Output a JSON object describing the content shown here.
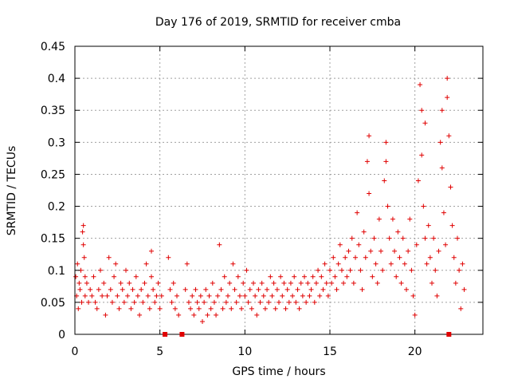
{
  "chart_data": {
    "type": "scatter",
    "title": "Day 176 of 2019, SRMTID for receiver cmba",
    "xlabel": "GPS time / hours",
    "ylabel": "SRMTID / TECUs",
    "xlim": [
      0,
      24
    ],
    "ylim": [
      0,
      0.45
    ],
    "x_ticks": [
      0,
      5,
      10,
      15,
      20
    ],
    "x_tick_labels": [
      "0",
      "5",
      "10",
      "15",
      "20"
    ],
    "y_ticks": [
      0,
      0.05,
      0.1,
      0.15,
      0.2,
      0.25,
      0.3,
      0.35,
      0.4,
      0.45
    ],
    "y_tick_labels": [
      "0",
      "0.05",
      "0.1",
      "0.15",
      "0.2",
      "0.25",
      "0.3",
      "0.35",
      "0.4",
      "0.45"
    ],
    "grid": true,
    "marker": "+",
    "color": "#e00000",
    "data_gap_markers_x": [
      5.3,
      6.3,
      22.0
    ],
    "series": [
      {
        "name": "SRMTID",
        "points": [
          [
            0.05,
            0.09
          ],
          [
            0.1,
            0.06
          ],
          [
            0.15,
            0.11
          ],
          [
            0.2,
            0.04
          ],
          [
            0.25,
            0.08
          ],
          [
            0.3,
            0.07
          ],
          [
            0.35,
            0.1
          ],
          [
            0.4,
            0.05
          ],
          [
            0.45,
            0.16
          ],
          [
            0.5,
            0.17
          ],
          [
            0.5,
            0.14
          ],
          [
            0.55,
            0.12
          ],
          [
            0.6,
            0.09
          ],
          [
            0.6,
            0.06
          ],
          [
            0.7,
            0.08
          ],
          [
            0.8,
            0.05
          ],
          [
            0.9,
            0.07
          ],
          [
            1.0,
            0.06
          ],
          [
            1.1,
            0.09
          ],
          [
            1.2,
            0.05
          ],
          [
            1.3,
            0.04
          ],
          [
            1.4,
            0.07
          ],
          [
            1.5,
            0.1
          ],
          [
            1.6,
            0.06
          ],
          [
            1.7,
            0.08
          ],
          [
            1.8,
            0.03
          ],
          [
            1.9,
            0.06
          ],
          [
            2.0,
            0.12
          ],
          [
            2.1,
            0.07
          ],
          [
            2.2,
            0.05
          ],
          [
            2.3,
            0.09
          ],
          [
            2.4,
            0.11
          ],
          [
            2.5,
            0.06
          ],
          [
            2.6,
            0.04
          ],
          [
            2.7,
            0.08
          ],
          [
            2.8,
            0.07
          ],
          [
            2.9,
            0.05
          ],
          [
            3.0,
            0.1
          ],
          [
            3.1,
            0.06
          ],
          [
            3.2,
            0.08
          ],
          [
            3.3,
            0.04
          ],
          [
            3.4,
            0.07
          ],
          [
            3.5,
            0.05
          ],
          [
            3.6,
            0.09
          ],
          [
            3.7,
            0.06
          ],
          [
            3.8,
            0.03
          ],
          [
            3.9,
            0.07
          ],
          [
            4.0,
            0.05
          ],
          [
            4.1,
            0.08
          ],
          [
            4.2,
            0.11
          ],
          [
            4.3,
            0.06
          ],
          [
            4.4,
            0.04
          ],
          [
            4.5,
            0.13
          ],
          [
            4.5,
            0.09
          ],
          [
            4.6,
            0.07
          ],
          [
            4.7,
            0.05
          ],
          [
            4.8,
            0.06
          ],
          [
            4.9,
            0.08
          ],
          [
            5.0,
            0.04
          ],
          [
            5.1,
            0.06
          ],
          [
            5.5,
            0.12
          ],
          [
            5.6,
            0.07
          ],
          [
            5.7,
            0.05
          ],
          [
            5.8,
            0.08
          ],
          [
            5.9,
            0.04
          ],
          [
            6.0,
            0.06
          ],
          [
            6.1,
            0.03
          ],
          [
            6.5,
            0.07
          ],
          [
            6.6,
            0.11
          ],
          [
            6.7,
            0.05
          ],
          [
            6.8,
            0.04
          ],
          [
            6.9,
            0.06
          ],
          [
            7.0,
            0.03
          ],
          [
            7.1,
            0.07
          ],
          [
            7.2,
            0.05
          ],
          [
            7.3,
            0.04
          ],
          [
            7.4,
            0.06
          ],
          [
            7.5,
            0.02
          ],
          [
            7.6,
            0.05
          ],
          [
            7.7,
            0.07
          ],
          [
            7.8,
            0.03
          ],
          [
            7.9,
            0.06
          ],
          [
            8.0,
            0.04
          ],
          [
            8.1,
            0.08
          ],
          [
            8.2,
            0.05
          ],
          [
            8.3,
            0.03
          ],
          [
            8.4,
            0.06
          ],
          [
            8.5,
            0.14
          ],
          [
            8.6,
            0.07
          ],
          [
            8.7,
            0.04
          ],
          [
            8.8,
            0.09
          ],
          [
            8.9,
            0.05
          ],
          [
            9.0,
            0.06
          ],
          [
            9.1,
            0.08
          ],
          [
            9.2,
            0.04
          ],
          [
            9.3,
            0.11
          ],
          [
            9.4,
            0.07
          ],
          [
            9.5,
            0.05
          ],
          [
            9.6,
            0.09
          ],
          [
            9.7,
            0.06
          ],
          [
            9.8,
            0.04
          ],
          [
            9.9,
            0.08
          ],
          [
            10.0,
            0.06
          ],
          [
            10.1,
            0.1
          ],
          [
            10.2,
            0.05
          ],
          [
            10.3,
            0.07
          ],
          [
            10.4,
            0.04
          ],
          [
            10.5,
            0.08
          ],
          [
            10.6,
            0.06
          ],
          [
            10.7,
            0.03
          ],
          [
            10.8,
            0.07
          ],
          [
            10.9,
            0.05
          ],
          [
            11.0,
            0.08
          ],
          [
            11.1,
            0.06
          ],
          [
            11.2,
            0.04
          ],
          [
            11.3,
            0.07
          ],
          [
            11.4,
            0.05
          ],
          [
            11.5,
            0.09
          ],
          [
            11.6,
            0.06
          ],
          [
            11.7,
            0.08
          ],
          [
            11.8,
            0.04
          ],
          [
            11.9,
            0.07
          ],
          [
            12.0,
            0.05
          ],
          [
            12.1,
            0.09
          ],
          [
            12.2,
            0.06
          ],
          [
            12.3,
            0.08
          ],
          [
            12.4,
            0.04
          ],
          [
            12.5,
            0.07
          ],
          [
            12.6,
            0.05
          ],
          [
            12.7,
            0.08
          ],
          [
            12.8,
            0.06
          ],
          [
            12.9,
            0.09
          ],
          [
            13.0,
            0.05
          ],
          [
            13.1,
            0.07
          ],
          [
            13.2,
            0.04
          ],
          [
            13.3,
            0.08
          ],
          [
            13.4,
            0.06
          ],
          [
            13.5,
            0.09
          ],
          [
            13.6,
            0.05
          ],
          [
            13.7,
            0.08
          ],
          [
            13.8,
            0.06
          ],
          [
            13.9,
            0.07
          ],
          [
            14.0,
            0.09
          ],
          [
            14.1,
            0.05
          ],
          [
            14.2,
            0.08
          ],
          [
            14.3,
            0.1
          ],
          [
            14.4,
            0.06
          ],
          [
            14.5,
            0.09
          ],
          [
            14.6,
            0.07
          ],
          [
            14.7,
            0.11
          ],
          [
            14.8,
            0.08
          ],
          [
            14.9,
            0.06
          ],
          [
            15.0,
            0.1
          ],
          [
            15.1,
            0.08
          ],
          [
            15.2,
            0.12
          ],
          [
            15.3,
            0.09
          ],
          [
            15.4,
            0.07
          ],
          [
            15.5,
            0.11
          ],
          [
            15.6,
            0.14
          ],
          [
            15.7,
            0.1
          ],
          [
            15.8,
            0.08
          ],
          [
            15.9,
            0.12
          ],
          [
            16.0,
            0.09
          ],
          [
            16.1,
            0.13
          ],
          [
            16.2,
            0.1
          ],
          [
            16.3,
            0.15
          ],
          [
            16.4,
            0.08
          ],
          [
            16.5,
            0.12
          ],
          [
            16.6,
            0.19
          ],
          [
            16.7,
            0.14
          ],
          [
            16.8,
            0.1
          ],
          [
            16.9,
            0.07
          ],
          [
            17.0,
            0.16
          ],
          [
            17.1,
            0.12
          ],
          [
            17.2,
            0.27
          ],
          [
            17.3,
            0.31
          ],
          [
            17.3,
            0.22
          ],
          [
            17.4,
            0.13
          ],
          [
            17.5,
            0.09
          ],
          [
            17.6,
            0.15
          ],
          [
            17.7,
            0.11
          ],
          [
            17.8,
            0.08
          ],
          [
            17.9,
            0.18
          ],
          [
            18.0,
            0.13
          ],
          [
            18.1,
            0.1
          ],
          [
            18.2,
            0.24
          ],
          [
            18.3,
            0.3
          ],
          [
            18.3,
            0.27
          ],
          [
            18.4,
            0.2
          ],
          [
            18.5,
            0.15
          ],
          [
            18.6,
            0.11
          ],
          [
            18.7,
            0.18
          ],
          [
            18.8,
            0.13
          ],
          [
            18.9,
            0.09
          ],
          [
            19.0,
            0.16
          ],
          [
            19.1,
            0.12
          ],
          [
            19.2,
            0.08
          ],
          [
            19.3,
            0.15
          ],
          [
            19.4,
            0.11
          ],
          [
            19.5,
            0.07
          ],
          [
            19.6,
            0.13
          ],
          [
            19.7,
            0.18
          ],
          [
            19.8,
            0.1
          ],
          [
            19.9,
            0.06
          ],
          [
            20.0,
            0.03
          ],
          [
            20.1,
            0.14
          ],
          [
            20.2,
            0.24
          ],
          [
            20.3,
            0.39
          ],
          [
            20.4,
            0.35
          ],
          [
            20.4,
            0.28
          ],
          [
            20.5,
            0.2
          ],
          [
            20.6,
            0.33
          ],
          [
            20.6,
            0.15
          ],
          [
            20.7,
            0.11
          ],
          [
            20.8,
            0.17
          ],
          [
            20.9,
            0.12
          ],
          [
            21.0,
            0.08
          ],
          [
            21.1,
            0.15
          ],
          [
            21.2,
            0.1
          ],
          [
            21.3,
            0.06
          ],
          [
            21.4,
            0.13
          ],
          [
            21.5,
            0.3
          ],
          [
            21.6,
            0.35
          ],
          [
            21.6,
            0.26
          ],
          [
            21.7,
            0.19
          ],
          [
            21.8,
            0.14
          ],
          [
            21.9,
            0.4
          ],
          [
            21.9,
            0.37
          ],
          [
            22.0,
            0.31
          ],
          [
            22.1,
            0.23
          ],
          [
            22.2,
            0.17
          ],
          [
            22.3,
            0.12
          ],
          [
            22.4,
            0.08
          ],
          [
            22.5,
            0.15
          ],
          [
            22.6,
            0.1
          ],
          [
            22.7,
            0.04
          ],
          [
            22.8,
            0.11
          ],
          [
            22.9,
            0.07
          ]
        ]
      }
    ]
  }
}
